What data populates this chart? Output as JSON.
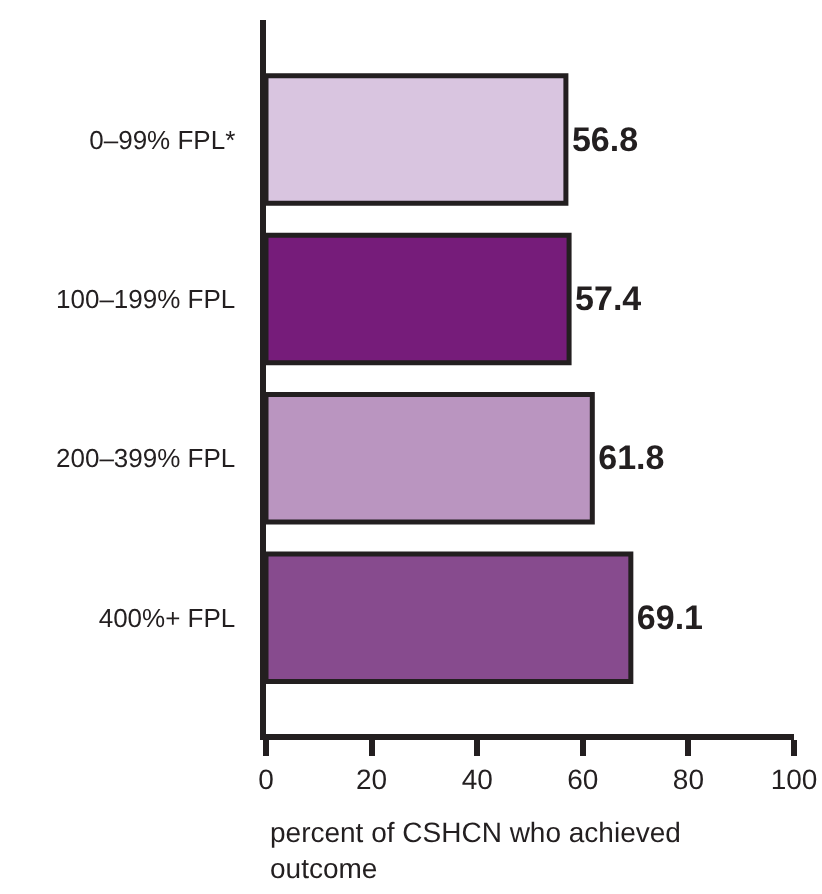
{
  "chart_data": {
    "type": "bar",
    "orientation": "horizontal",
    "categories": [
      "0–99% FPL*",
      "100–199% FPL",
      "200–399% FPL",
      "400%+ FPL"
    ],
    "values": [
      56.8,
      57.4,
      61.8,
      69.1
    ],
    "colors": [
      "#d9c5e0",
      "#761c7a",
      "#ba95c0",
      "#874b8e"
    ],
    "xlim": [
      0,
      100
    ],
    "xticks": [
      0,
      20,
      40,
      60,
      80,
      100
    ],
    "xlabel": "percent of CSHCN who achieved outcome",
    "data_labels": true
  }
}
